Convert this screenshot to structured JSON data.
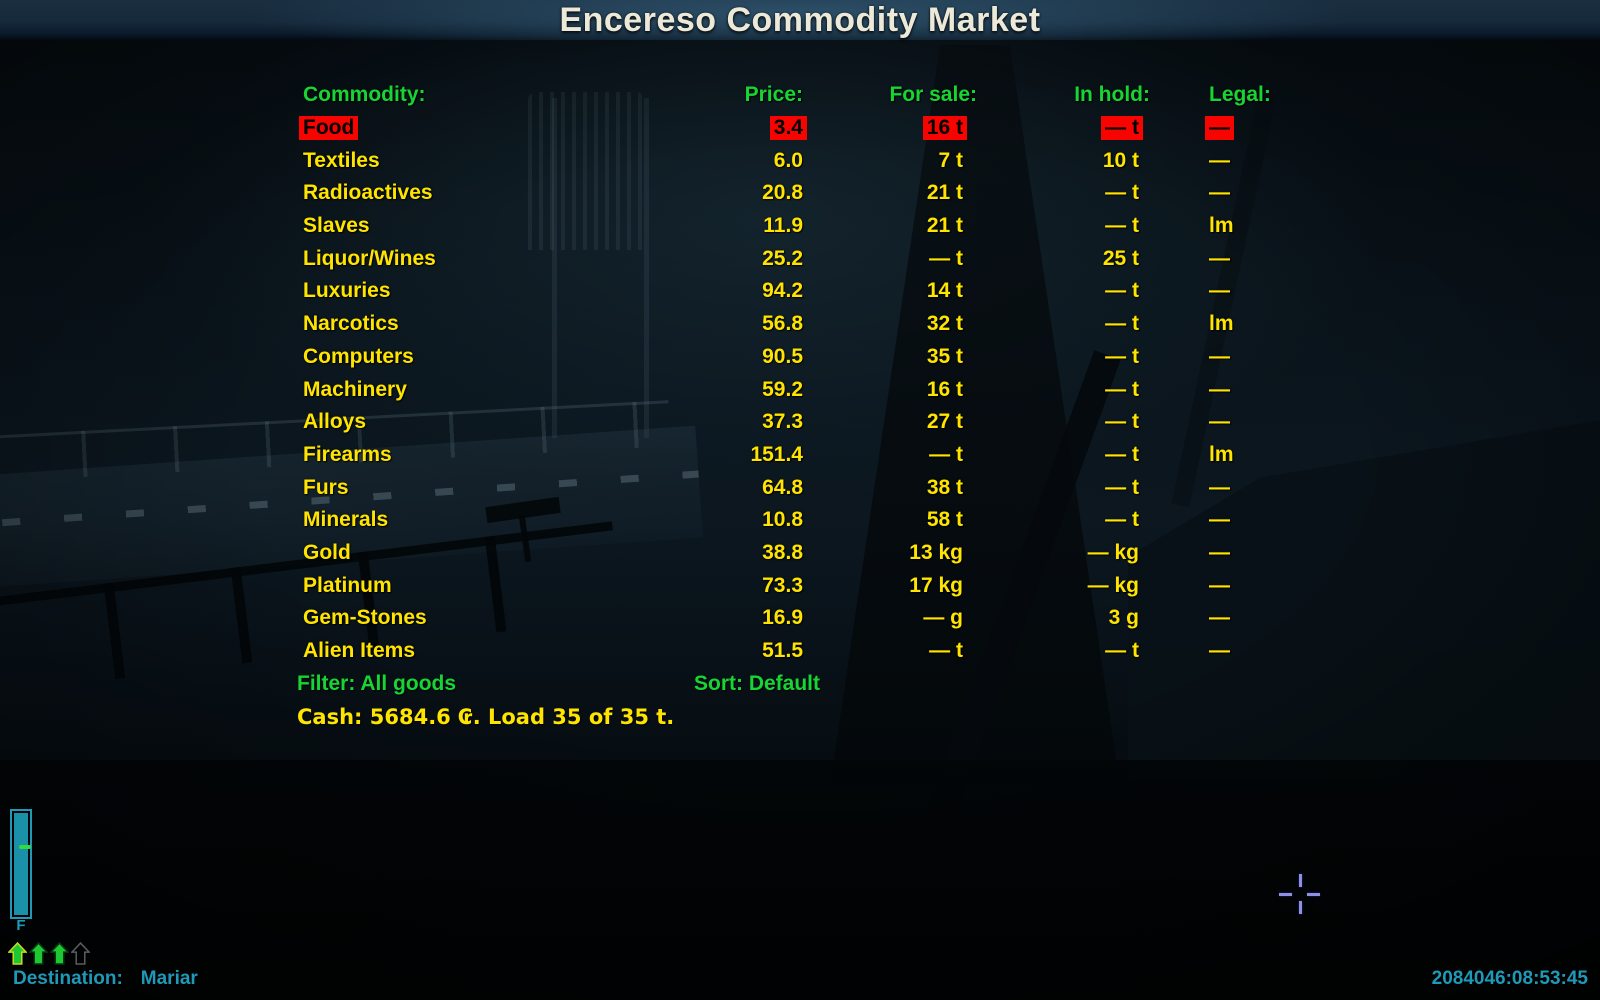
{
  "title": "Encereso Commodity Market",
  "market": {
    "columns": {
      "commodity": "Commodity:",
      "price": "Price:",
      "for_sale": "For sale:",
      "in_hold": "In hold:",
      "legal": "Legal:"
    },
    "rows": [
      {
        "name": "Food",
        "price": "3.4",
        "for_sale": "16 t",
        "in_hold": "— t",
        "legal": "—",
        "selected": true
      },
      {
        "name": "Textiles",
        "price": "6.0",
        "for_sale": "7 t",
        "in_hold": "10 t",
        "legal": "—"
      },
      {
        "name": "Radioactives",
        "price": "20.8",
        "for_sale": "21 t",
        "in_hold": "— t",
        "legal": "—"
      },
      {
        "name": "Slaves",
        "price": "11.9",
        "for_sale": "21 t",
        "in_hold": "— t",
        "legal": "lm"
      },
      {
        "name": "Liquor/Wines",
        "price": "25.2",
        "for_sale": "— t",
        "in_hold": "25 t",
        "legal": "—"
      },
      {
        "name": "Luxuries",
        "price": "94.2",
        "for_sale": "14 t",
        "in_hold": "— t",
        "legal": "—"
      },
      {
        "name": "Narcotics",
        "price": "56.8",
        "for_sale": "32 t",
        "in_hold": "— t",
        "legal": "lm"
      },
      {
        "name": "Computers",
        "price": "90.5",
        "for_sale": "35 t",
        "in_hold": "— t",
        "legal": "—"
      },
      {
        "name": "Machinery",
        "price": "59.2",
        "for_sale": "16 t",
        "in_hold": "— t",
        "legal": "—"
      },
      {
        "name": "Alloys",
        "price": "37.3",
        "for_sale": "27 t",
        "in_hold": "— t",
        "legal": "—"
      },
      {
        "name": "Firearms",
        "price": "151.4",
        "for_sale": "— t",
        "in_hold": "— t",
        "legal": "lm"
      },
      {
        "name": "Furs",
        "price": "64.8",
        "for_sale": "38 t",
        "in_hold": "— t",
        "legal": "—"
      },
      {
        "name": "Minerals",
        "price": "10.8",
        "for_sale": "58 t",
        "in_hold": "— t",
        "legal": "—"
      },
      {
        "name": "Gold",
        "price": "38.8",
        "for_sale": "13 kg",
        "in_hold": "— kg",
        "legal": "—"
      },
      {
        "name": "Platinum",
        "price": "73.3",
        "for_sale": "17 kg",
        "in_hold": "— kg",
        "legal": "—"
      },
      {
        "name": "Gem-Stones",
        "price": "16.9",
        "for_sale": "— g",
        "in_hold": "3 g",
        "legal": "—"
      },
      {
        "name": "Alien Items",
        "price": "51.5",
        "for_sale": "— t",
        "in_hold": "— t",
        "legal": "—"
      }
    ],
    "filter_label": "Filter: All goods",
    "sort_label": "Sort: Default",
    "cash_line": "Cash: 5684.6 ₢. Load 35 of 35 t."
  },
  "hud": {
    "fuel_gauge_label": "F",
    "arrow_icons": [
      "up-arrow-filled-selected",
      "up-arrow-filled",
      "up-arrow-filled",
      "up-arrow-outline"
    ],
    "destination_label": "Destination:",
    "destination_value": "Mariar",
    "clock": "2084046:08:53:45"
  },
  "colors": {
    "accent_green": "#17d633",
    "row_yellow": "#ffe400",
    "highlight_red": "#f80400",
    "title_cream": "#ece9d8",
    "hud_teal": "#1e9ab8",
    "gauge_fill": "#1b90a9",
    "gauge_tick_green": "#2edc40",
    "arrow_green": "#1ec832",
    "arrow_highlight_outline": "#c8d820",
    "crosshair_lavender": "#8f8fe6"
  }
}
